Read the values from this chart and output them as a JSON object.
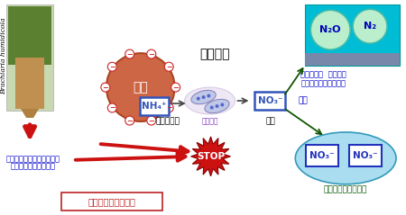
{
  "plant_label": "Brachiaria humidicola",
  "nitrification_label": "确化作用",
  "ammonia_label": "アンモニア",
  "bacteria_label": "确化細菌",
  "nitric_acid_label": "确酸",
  "soil_label": "土壌",
  "nh4_label": "NH₄⁺",
  "no3_label": "NO₃⁻",
  "root_release_line1": "根から确化抑制物質の放出",
  "root_release_line2": "（ブラキアラクトン）",
  "bio_inhibition_label": "生物的确化抑制作用",
  "gas_label1": "亜酸化窒素  窒素ガス",
  "gas_label2": "ガスとして大気へ放出",
  "runoff_label": "流亡",
  "groundwater_label": "地下水や河川の汚染",
  "n2o_label": "N₂O",
  "n2_label": "N₂",
  "stop_label": "STOP",
  "colors": {
    "soil_circle": "#cc6644",
    "soil_text": "#ffffff",
    "nh4_box": "#3355bb",
    "no3_box": "#3355bb",
    "bacteria_fill": "#c0c8e8",
    "bacteria_edge": "#8888bb",
    "arrow_red": "#cc1111",
    "arrow_dark": "#444444",
    "arrow_green": "#115500",
    "stop_red": "#cc1111",
    "sky_bg": "#00bcd4",
    "sky_ground": "#7788aa",
    "n2o_circle": "#bbeecc",
    "water_fill": "#aaddf0",
    "water_edge": "#3399bb",
    "no3_water_edge": "#2233bb",
    "text_blue": "#0000cc",
    "text_green": "#005500",
    "bio_box_edge": "#bb2222",
    "bio_box_text": "#bb2222",
    "plant_bg": "#c8d8b0",
    "plant_green": "#5a8030",
    "plant_root": "#c09050"
  }
}
